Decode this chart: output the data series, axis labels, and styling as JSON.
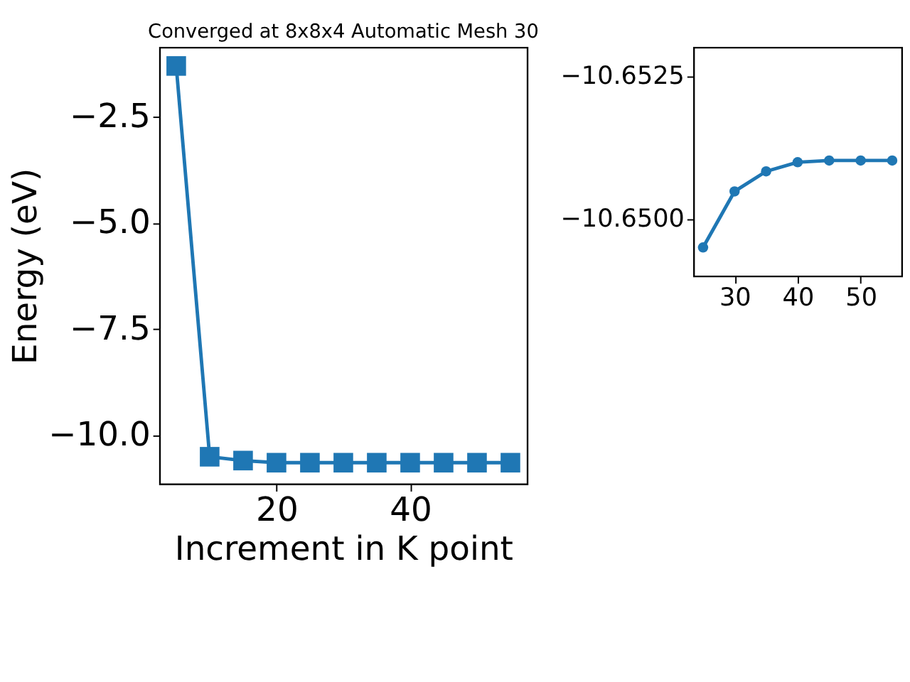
{
  "chart_data": [
    {
      "type": "line",
      "title": "Converged at 8x8x4 Automatic Mesh 30",
      "xlabel": "Increment in K point",
      "ylabel": "Energy (eV)",
      "x": [
        5,
        10,
        15,
        20,
        25,
        30,
        35,
        40,
        45,
        50,
        55
      ],
      "series": [
        {
          "color": "#1f77b4",
          "values": [
            -1.31,
            -10.51,
            -10.6,
            -10.65,
            -10.65,
            -10.65,
            -10.65,
            -10.65,
            -10.65,
            -10.65,
            -10.65
          ]
        }
      ],
      "marker": "square",
      "line_style": "solid",
      "xlim": [
        2.5,
        57.5
      ],
      "ylim": [
        -11.15,
        -0.87
      ],
      "xticks": [
        20,
        40
      ],
      "yticks": [
        {
          "value": -10,
          "label": "−10.0"
        },
        -7.5,
        {
          "value": -5,
          "label": "−5.0"
        },
        -2.5
      ],
      "grid": false
    },
    {
      "type": "line",
      "x": [
        25,
        30,
        35,
        40,
        45,
        50,
        55
      ],
      "series": [
        {
          "color": "#1f77b4",
          "values": [
            -10.6495,
            -10.65048,
            -10.65083,
            -10.65099,
            -10.65102,
            -10.65102,
            -10.65102
          ]
        }
      ],
      "marker": "circle",
      "line_style": "solid",
      "xlim": [
        23.5,
        56.5
      ],
      "ylim": [
        -10.649,
        -10.653
      ],
      "xticks": [
        30,
        40,
        50
      ],
      "yticks": [
        {
          "value": -10.65,
          "label": "−10.6500"
        },
        -10.6525
      ],
      "grid": false
    }
  ]
}
